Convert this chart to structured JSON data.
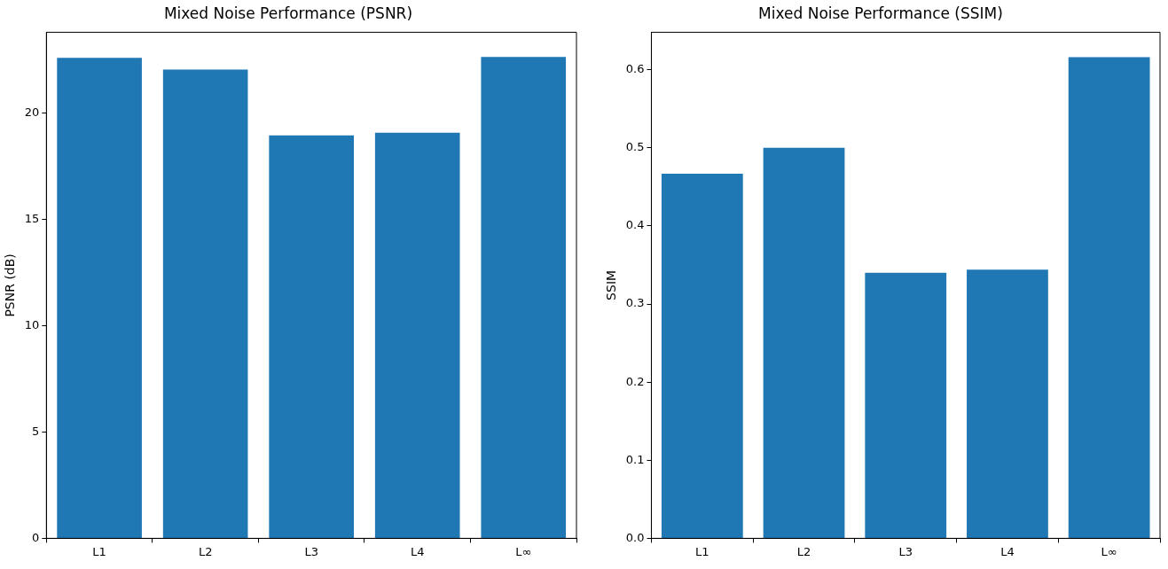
{
  "chart_data": [
    {
      "type": "bar",
      "title": "Mixed Noise Performance (PSNR)",
      "ylabel": "PSNR (dB)",
      "categories": [
        "L1",
        "L2",
        "L3",
        "L4",
        "L∞"
      ],
      "values": [
        22.6,
        22.05,
        18.95,
        19.08,
        22.64
      ],
      "color": "#1f77b4",
      "ylim": [
        0,
        23.8
      ],
      "yticks": [
        0,
        5,
        10,
        15,
        20
      ],
      "grid": false,
      "legend": false
    },
    {
      "type": "bar",
      "title": "Mixed Noise Performance (SSIM)",
      "ylabel": "SSIM",
      "categories": [
        "L1",
        "L2",
        "L3",
        "L4",
        "L∞"
      ],
      "values": [
        0.467,
        0.5,
        0.34,
        0.344,
        0.616
      ],
      "color": "#1f77b4",
      "ylim": [
        0,
        0.648
      ],
      "yticks": [
        {
          "value": 0,
          "label": "0.0"
        },
        0.1,
        0.2,
        0.3,
        0.4,
        0.5,
        0.6
      ],
      "grid": false,
      "legend": false
    }
  ]
}
